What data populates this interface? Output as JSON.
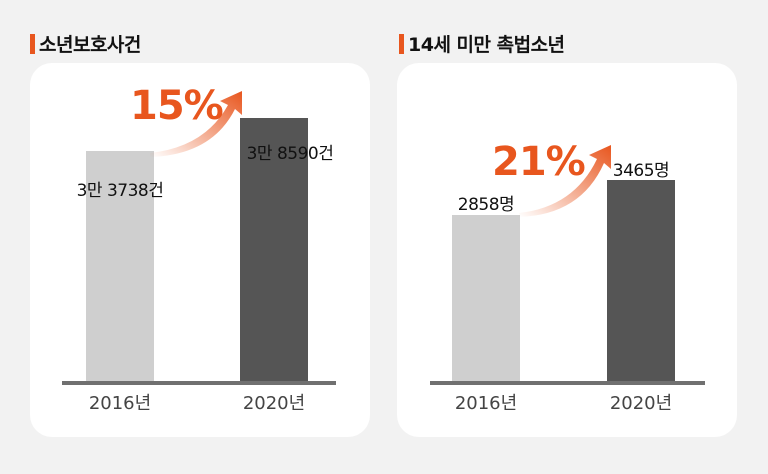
{
  "colors": {
    "accent": "#e8561e",
    "bar_prev": "#cfcfcf",
    "bar_curr": "#555555"
  },
  "chart_data": [
    {
      "type": "bar",
      "title": "소년보호사건",
      "categories": [
        "2016년",
        "2020년"
      ],
      "values": [
        33738,
        38590
      ],
      "value_labels": [
        "3만 3738건",
        "3만 8590건"
      ],
      "annotation": "15%",
      "unit": "건"
    },
    {
      "type": "bar",
      "title": "14세 미만 촉법소년",
      "categories": [
        "2016년",
        "2020년"
      ],
      "values": [
        2858,
        3465
      ],
      "value_labels": [
        "2858명",
        "3465명"
      ],
      "annotation": "21%",
      "unit": "명"
    }
  ]
}
